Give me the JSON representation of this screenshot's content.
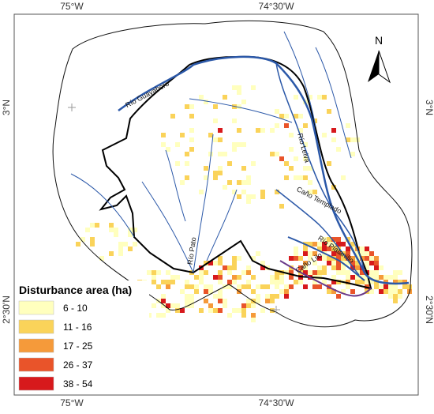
{
  "map": {
    "coordinate_labels": {
      "top": [
        "75°W",
        "74°30'W"
      ],
      "bottom": [
        "75°W",
        "74°30'W"
      ],
      "left": [
        "3°N",
        "2°30'N"
      ],
      "right": [
        "3°N",
        "2°30'N"
      ]
    },
    "north_arrow": "N",
    "river_labels": [
      "Río Guayabero",
      "Río Leiva",
      "Caño Templado",
      "Río Platanillo",
      "Caño Lilo",
      "Río Pato"
    ],
    "legend": {
      "title": "Disturbance area (ha)",
      "items": [
        {
          "label": "6 - 10",
          "color": "#ffffbe"
        },
        {
          "label": "11 - 16",
          "color": "#fad35a"
        },
        {
          "label": "17 - 25",
          "color": "#f59a3a"
        },
        {
          "label": "26 - 37",
          "color": "#e9542a"
        },
        {
          "label": "38 - 54",
          "color": "#d7191c"
        }
      ]
    }
  }
}
